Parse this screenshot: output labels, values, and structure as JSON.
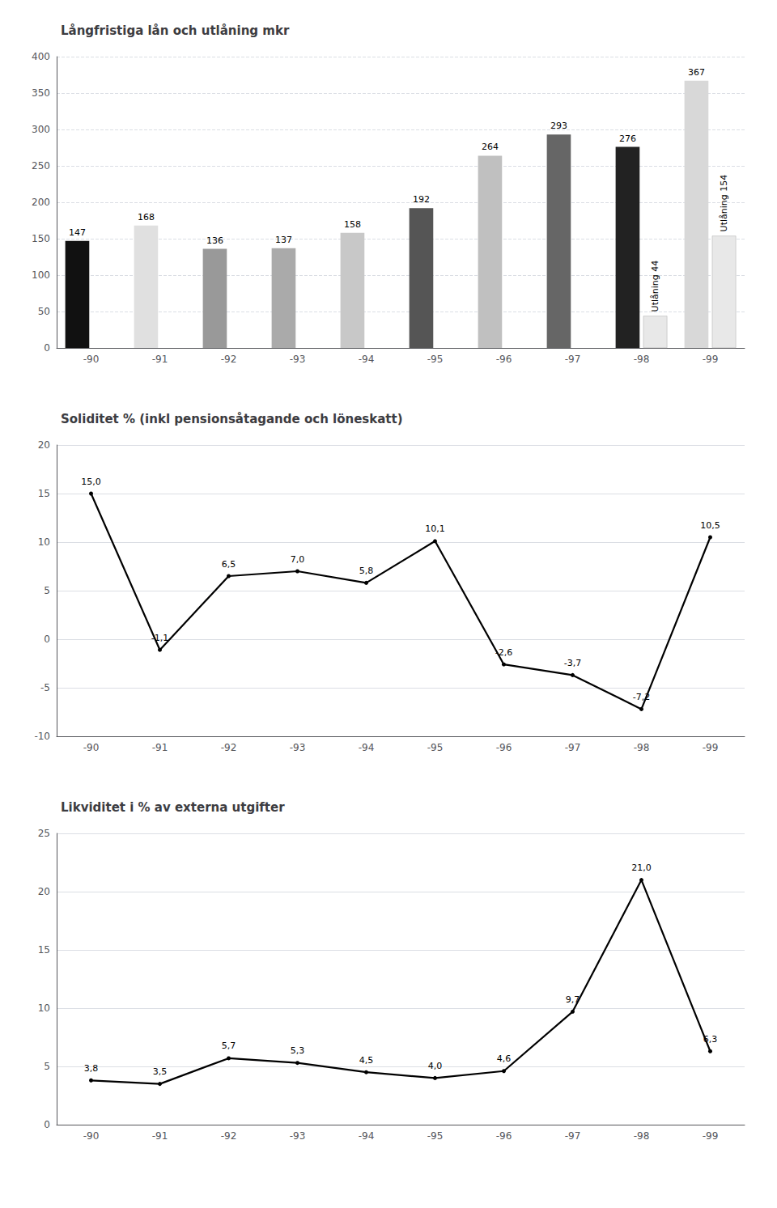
{
  "chart_data": [
    {
      "type": "bar",
      "title": "Långfristiga lån och utlåning mkr",
      "categories": [
        "-90",
        "-91",
        "-92",
        "-93",
        "-94",
        "-95",
        "-96",
        "-97",
        "-98",
        "-99"
      ],
      "series": [
        {
          "values": [
            147,
            168,
            136,
            137,
            158,
            192,
            264,
            293,
            276,
            367
          ],
          "colors": [
            "#111111",
            "#e0e0e0",
            "#999999",
            "#aaaaaa",
            "#c8c8c8",
            "#555555",
            "#c0c0c0",
            "#666666",
            "#222222",
            "#d8d8d8"
          ],
          "data_labels": true
        },
        {
          "values": [
            null,
            null,
            null,
            null,
            null,
            null,
            null,
            null,
            44,
            154
          ],
          "color": "#e8e8e8",
          "value_labels": [
            null,
            null,
            null,
            null,
            null,
            null,
            null,
            null,
            "Utlåning 44",
            "Utlåning 154"
          ]
        }
      ],
      "ylim": [
        0,
        400
      ],
      "yticks": [
        0,
        50,
        100,
        150,
        200,
        250,
        300,
        350,
        400
      ],
      "grid": true
    },
    {
      "type": "line",
      "title": "Soliditet % (inkl pensionsåtagande och löneskatt)",
      "categories": [
        "-90",
        "-91",
        "-92",
        "-93",
        "-94",
        "-95",
        "-96",
        "-97",
        "-98",
        "-99"
      ],
      "values": [
        15.0,
        -1.1,
        6.5,
        7.0,
        5.8,
        10.1,
        -2.6,
        -3.7,
        -7.2,
        10.5
      ],
      "value_labels": [
        "15,0",
        "-1,1",
        "6,5",
        "7,0",
        "5,8",
        "10,1",
        "-2,6",
        "-3,7",
        "-7,2",
        "10,5"
      ],
      "color": "#000000",
      "ylim": [
        -10,
        20
      ],
      "yticks": [
        -10,
        -5,
        0,
        5,
        10,
        15,
        20
      ],
      "grid": true
    },
    {
      "type": "line",
      "title": "Likviditet i % av externa utgifter",
      "categories": [
        "-90",
        "-91",
        "-92",
        "-93",
        "-94",
        "-95",
        "-96",
        "-97",
        "-98",
        "-99"
      ],
      "values": [
        3.8,
        3.5,
        5.7,
        5.3,
        4.5,
        4.0,
        4.6,
        9.7,
        21.0,
        6.3
      ],
      "value_labels": [
        "3,8",
        "3,5",
        "5,7",
        "5,3",
        "4,5",
        "4,0",
        "4,6",
        "9,7",
        "21,0",
        "6,3"
      ],
      "color": "#000000",
      "ylim": [
        0,
        25
      ],
      "yticks": [
        0,
        5,
        10,
        15,
        20,
        25
      ],
      "grid": true
    }
  ]
}
